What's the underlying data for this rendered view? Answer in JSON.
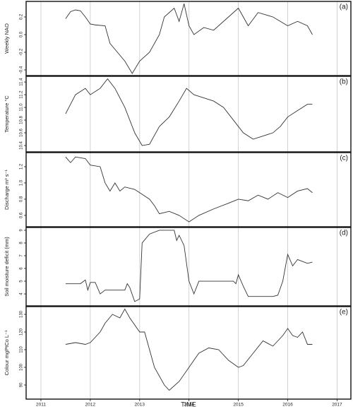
{
  "chart_data": [
    {
      "type": "line",
      "panel_label": "(a)",
      "ylabel": "Weekly NAO",
      "color": "#333333",
      "xlim": [
        2010.7,
        2017.28
      ],
      "ylim": [
        -0.464,
        0.376
      ],
      "yticks": [
        -0.4,
        -0.2,
        {
          "value": 0,
          "label": "0.0"
        },
        0.2
      ],
      "x": [
        2011.5,
        2011.6,
        2011.7,
        2011.8,
        2011.9,
        2012.0,
        2012.1,
        2012.3,
        2012.4,
        2012.55,
        2012.7,
        2012.85,
        2013.0,
        2013.2,
        2013.4,
        2013.5,
        2013.7,
        2013.8,
        2013.9,
        2014.0,
        2014.1,
        2014.3,
        2014.5,
        2014.8,
        2015.0,
        2015.2,
        2015.4,
        2015.7,
        2016.0,
        2016.2,
        2016.4,
        2016.5
      ],
      "values": [
        0.18,
        0.26,
        0.28,
        0.27,
        0.2,
        0.12,
        0.11,
        0.1,
        -0.1,
        -0.2,
        -0.3,
        -0.44,
        -0.3,
        -0.2,
        0.0,
        0.2,
        0.3,
        0.15,
        0.35,
        0.1,
        0.0,
        0.08,
        0.05,
        0.2,
        0.3,
        0.1,
        0.25,
        0.2,
        0.1,
        0.15,
        0.1,
        0.0
      ]
    },
    {
      "type": "line",
      "panel_label": "(b)",
      "ylabel": "Temperature °C",
      "color": "#333333",
      "xlim": [
        2010.7,
        2017.28
      ],
      "ylim": [
        10.3,
        11.49
      ],
      "yticks": [
        10.4,
        10.6,
        10.8,
        {
          "value": 11,
          "label": "11.0"
        },
        11.2,
        11.4
      ],
      "x": [
        2011.5,
        2011.7,
        2011.9,
        2012.0,
        2012.2,
        2012.35,
        2012.5,
        2012.7,
        2012.9,
        2013.05,
        2013.2,
        2013.4,
        2013.6,
        2013.8,
        2013.95,
        2014.1,
        2014.3,
        2014.5,
        2014.7,
        2014.9,
        2015.1,
        2015.3,
        2015.5,
        2015.7,
        2015.85,
        2016.0,
        2016.2,
        2016.4,
        2016.5
      ],
      "values": [
        10.9,
        11.2,
        11.3,
        11.2,
        11.3,
        11.45,
        11.3,
        11.0,
        10.6,
        10.4,
        10.42,
        10.7,
        10.85,
        11.1,
        11.3,
        11.2,
        11.15,
        11.1,
        11.0,
        10.8,
        10.6,
        10.5,
        10.55,
        10.6,
        10.7,
        10.85,
        10.95,
        11.05,
        11.05
      ]
    },
    {
      "type": "line",
      "panel_label": "(c)",
      "ylabel": "Discharge m³ s⁻¹",
      "color": "#333333",
      "xlim": [
        2010.7,
        2017.28
      ],
      "ylim": [
        0.46,
        1.374
      ],
      "yticks": [
        0.6,
        0.8,
        {
          "value": 1,
          "label": "1.0"
        },
        1.2
      ],
      "x": [
        2011.5,
        2011.6,
        2011.7,
        2011.9,
        2012.0,
        2012.2,
        2012.3,
        2012.4,
        2012.5,
        2012.6,
        2012.7,
        2012.9,
        2013.0,
        2013.2,
        2013.3,
        2013.4,
        2013.6,
        2013.8,
        2014.0,
        2014.2,
        2014.5,
        2014.8,
        2015.0,
        2015.2,
        2015.4,
        2015.6,
        2015.8,
        2016.0,
        2016.2,
        2016.4,
        2016.5
      ],
      "values": [
        1.32,
        1.25,
        1.32,
        1.3,
        1.22,
        1.2,
        1.0,
        0.9,
        1.0,
        0.9,
        0.95,
        0.92,
        0.88,
        0.8,
        0.72,
        0.62,
        0.65,
        0.6,
        0.52,
        0.6,
        0.68,
        0.75,
        0.8,
        0.78,
        0.85,
        0.8,
        0.88,
        0.82,
        0.9,
        0.93,
        0.88
      ]
    },
    {
      "type": "line",
      "panel_label": "(d)",
      "ylabel": "Soil moisture deficit (mm)",
      "color": "#333333",
      "xlim": [
        2010.7,
        2017.28
      ],
      "ylim": [
        3.06,
        9.22
      ],
      "yticks": [
        4,
        5,
        6,
        7,
        8,
        9
      ],
      "x": [
        2011.5,
        2011.8,
        2011.9,
        2011.95,
        2012.0,
        2012.1,
        2012.2,
        2012.3,
        2012.7,
        2012.75,
        2012.8,
        2012.9,
        2013.0,
        2013.05,
        2013.2,
        2013.4,
        2013.7,
        2013.75,
        2013.8,
        2013.9,
        2014.0,
        2014.1,
        2014.2,
        2014.9,
        2014.95,
        2015.0,
        2015.1,
        2015.2,
        2015.7,
        2015.8,
        2015.9,
        2016.0,
        2016.1,
        2016.2,
        2016.4,
        2016.5
      ],
      "values": [
        4.8,
        4.8,
        5.1,
        4.3,
        4.9,
        4.9,
        4.0,
        4.3,
        4.3,
        4.8,
        4.5,
        3.4,
        3.6,
        8.0,
        8.7,
        9.0,
        9.0,
        8.2,
        8.6,
        7.8,
        5.0,
        4.0,
        5.0,
        5.0,
        4.8,
        5.5,
        4.6,
        3.8,
        3.8,
        3.9,
        5.0,
        7.1,
        6.2,
        6.7,
        6.4,
        6.5
      ]
    },
    {
      "type": "line",
      "panel_label": "(e)",
      "ylabel": "Colour mgPtCo L⁻¹",
      "color": "#333333",
      "xlim": [
        2010.7,
        2017.28
      ],
      "ylim": [
        82,
        134.4
      ],
      "yticks": [
        90,
        100,
        110,
        120,
        130
      ],
      "xticks": [
        2011,
        2012,
        2013,
        2014,
        2015,
        2016,
        2017
      ],
      "xlabel": "TIME",
      "x": [
        2011.5,
        2011.7,
        2011.9,
        2012.0,
        2012.2,
        2012.3,
        2012.45,
        2012.6,
        2012.7,
        2012.8,
        2013.0,
        2013.1,
        2013.2,
        2013.3,
        2013.5,
        2013.6,
        2013.8,
        2014.0,
        2014.2,
        2014.4,
        2014.6,
        2014.8,
        2015.0,
        2015.1,
        2015.3,
        2015.5,
        2015.7,
        2015.9,
        2016.0,
        2016.1,
        2016.2,
        2016.3,
        2016.4,
        2016.5
      ],
      "values": [
        113,
        114,
        113,
        114,
        120,
        125,
        130,
        128,
        133,
        128,
        120,
        120,
        110,
        100,
        90,
        87,
        92,
        100,
        108,
        111,
        110,
        104,
        100,
        101,
        108,
        115,
        112,
        118,
        122,
        118,
        117,
        120,
        113,
        113
      ]
    }
  ]
}
